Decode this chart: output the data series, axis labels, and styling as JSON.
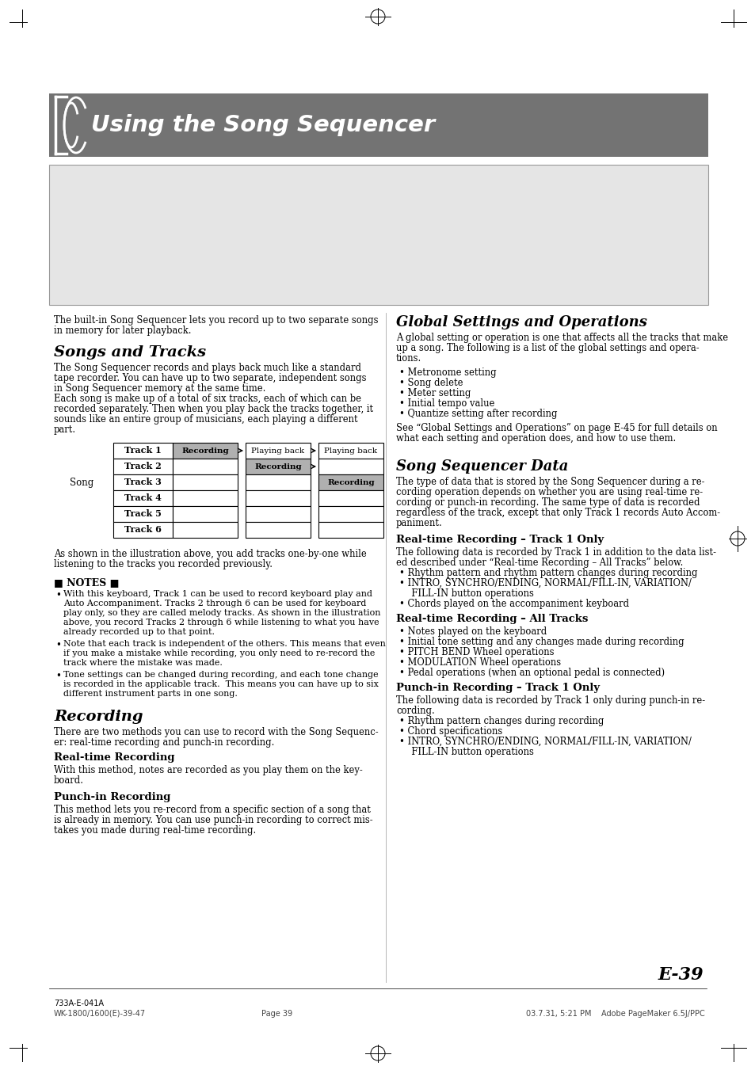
{
  "title": "Using the Song Sequencer",
  "title_bg_color": "#737373",
  "title_text_color": "#ffffff",
  "page_bg": "#ffffff",
  "page_number": "E-39",
  "footer_left": "733A-E-041A",
  "footer_center_left": "WK-1800/1600(E)-39-47",
  "footer_center": "Page 39",
  "footer_right": "03.7.31, 5:21 PM    Adobe PageMaker 6.5J/PPC",
  "tracks": [
    "Track 1",
    "Track 2",
    "Track 3",
    "Track 4",
    "Track 5",
    "Track 6"
  ],
  "notes_title": "■ NOTES ■",
  "gray_fill": "#b0b0b0",
  "section1_title": "Songs and Tracks",
  "section2_title": "Recording",
  "subsection2a_title": "Real-time Recording",
  "subsection2b_title": "Punch-in Recording",
  "section3_title": "Global Settings and Operations",
  "section4_title": "Song Sequencer Data",
  "subsection4a_title": "Real-time Recording – Track 1 Only",
  "subsection4b_title": "Real-time Recording – All Tracks",
  "subsection4c_title": "Punch-in Recording – Track 1 Only",
  "section3_bullets": [
    "Metronome setting",
    "Song delete",
    "Meter setting",
    "Initial tempo value",
    "Quantize setting after recording"
  ],
  "subsection4a_bullets": [
    "Rhythm pattern and rhythm pattern changes during recording",
    "INTRO, SYNCHRO/ENDING, NORMAL/FILL-IN, VARIATION/\nFILL-IN button operations",
    "Chords played on the accompaniment keyboard"
  ],
  "subsection4b_bullets": [
    "Notes played on the keyboard",
    "Initial tone setting and any changes made during recording",
    "PITCH BEND Wheel operations",
    "MODULATION Wheel operations",
    "Pedal operations (when an optional pedal is connected)"
  ],
  "subsection4c_bullets": [
    "Rhythm pattern changes during recording",
    "Chord specifications",
    "INTRO, SYNCHRO/ENDING, NORMAL/FILL-IN, VARIATION/\nFILL-IN button operations"
  ]
}
